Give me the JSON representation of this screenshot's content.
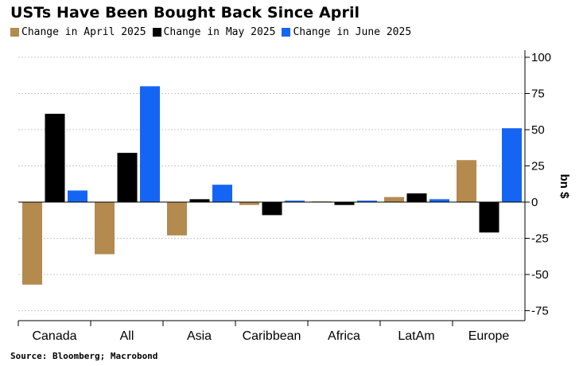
{
  "chart_data": {
    "type": "bar",
    "title": "USTs Have Been Bought Back Since April",
    "ylabel": "bn $",
    "xlabel": "",
    "source": "Source: Bloomberg; Macrobond",
    "categories": [
      "Canada",
      "All",
      "Asia",
      "Caribbean",
      "Africa",
      "LatAm",
      "Europe"
    ],
    "series": [
      {
        "name": "Change in April 2025",
        "color": "#b48a4f",
        "values": [
          -57,
          -36,
          -23,
          -2,
          0.5,
          3.5,
          29
        ]
      },
      {
        "name": "Change in May 2025",
        "color": "#000000",
        "values": [
          61,
          34,
          2,
          -9,
          -2,
          6,
          -21
        ]
      },
      {
        "name": "Change in June 2025",
        "color": "#1565f5",
        "values": [
          8,
          80,
          12,
          1,
          1,
          2,
          51
        ]
      }
    ],
    "ylim": [
      -80,
      100
    ],
    "yticks": [
      100,
      75,
      50,
      25,
      0,
      -25,
      -50,
      -75
    ],
    "ytick_labels": [
      "100",
      "75",
      "50",
      "25",
      "0",
      "-25",
      "-50",
      "-75"
    ],
    "grid": true,
    "legend_position": "top-left"
  }
}
